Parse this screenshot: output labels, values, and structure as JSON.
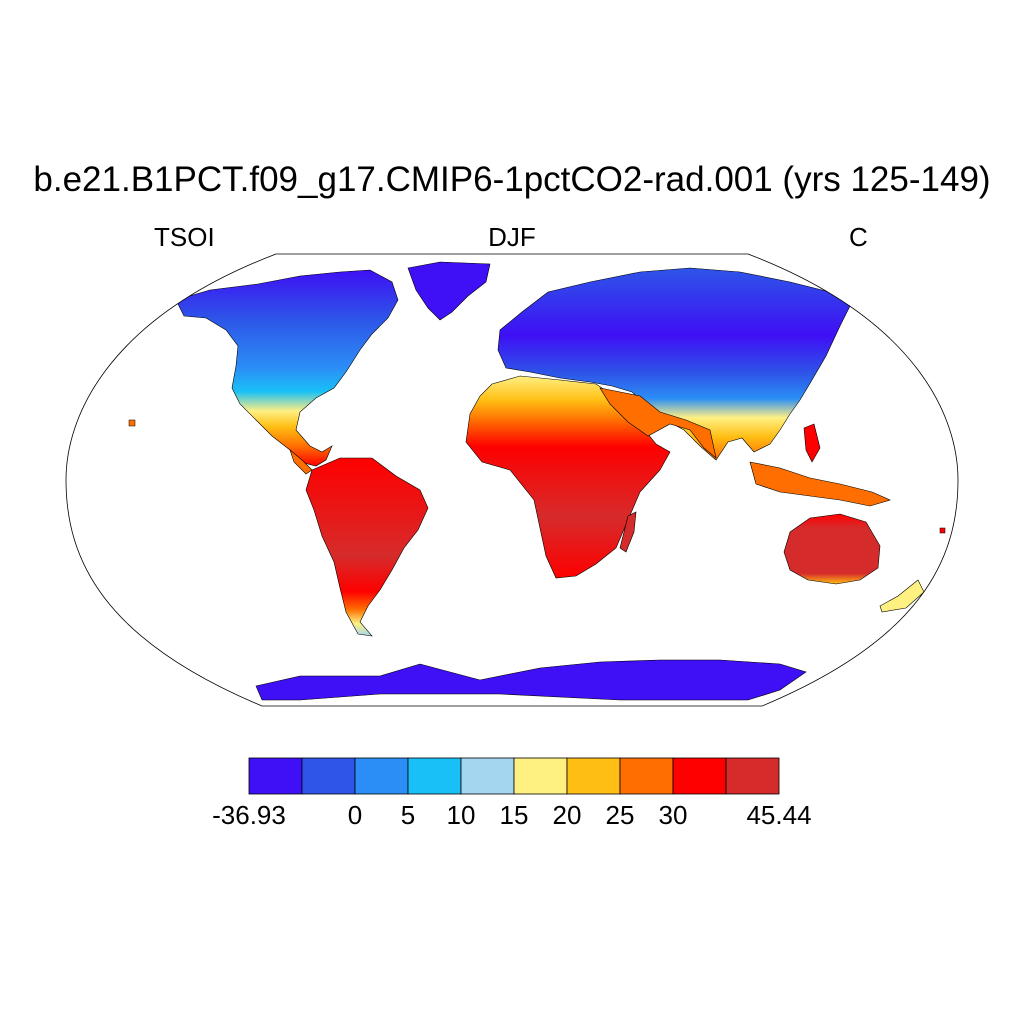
{
  "figure": {
    "title": "b.e21.B1PCT.f09_g17.CMIP6-1pctCO2-rad.001 (yrs 125-149)",
    "left_label": "TSOI",
    "center_label": "DJF",
    "right_label": "C"
  },
  "colorbar": {
    "colors": [
      "#3f0ff5",
      "#2d55e8",
      "#2b8ef6",
      "#19c0f7",
      "#a4d6f0",
      "#fff082",
      "#ffbe14",
      "#ff6e00",
      "#fe0000",
      "#d62b2b"
    ],
    "labels": [
      "-36.93",
      "0",
      "5",
      "10",
      "15",
      "20",
      "25",
      "30",
      "45.44"
    ],
    "label_positions": [
      0,
      2,
      3,
      4,
      5,
      6,
      7,
      8,
      10
    ]
  },
  "map_colors": {
    "ocean": "#ffffff",
    "outline": "#000000"
  }
}
